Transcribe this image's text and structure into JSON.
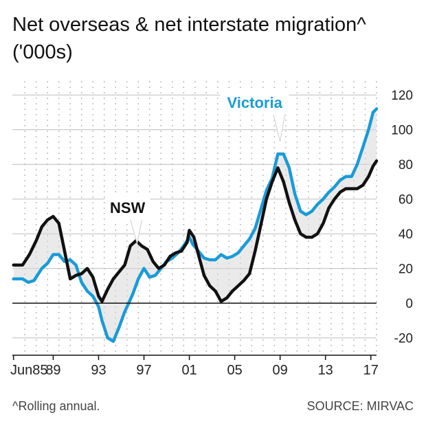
{
  "title_line1": "Net overseas & net interstate migration^",
  "title_line2": "('000s)",
  "footnote": "^Rolling annual.",
  "source": "SOURCE: MIRVAC",
  "colors": {
    "victoria": "#1a9bd7",
    "nsw": "#111111",
    "grid": "#bbbbbb",
    "axis": "#111111"
  },
  "chart_data": {
    "type": "line",
    "x_tick_labels": [
      "Jun85",
      "89",
      "93",
      "97",
      "01",
      "05",
      "09",
      "13",
      "17"
    ],
    "x_tick_values": [
      1985.5,
      1989,
      1993,
      1997,
      2001,
      2005,
      2009,
      2013,
      2017
    ],
    "xlim": [
      1985.4,
      2017.5
    ],
    "y_tick_labels": [
      "120",
      "100",
      "80",
      "60",
      "40",
      "20",
      "0",
      "-20"
    ],
    "y_tick_values": [
      120,
      100,
      80,
      60,
      40,
      20,
      0,
      -20
    ],
    "ylim": [
      -30,
      128
    ],
    "annotations": [
      {
        "label": "NSW",
        "series": "NSW",
        "x": 1996.4,
        "y": 33
      },
      {
        "label": "Victoria",
        "series": "Victoria",
        "x": 2009.0,
        "y": 92
      }
    ],
    "series": [
      {
        "name": "Victoria",
        "color": "#1a9bd7",
        "points": [
          [
            1985.5,
            14
          ],
          [
            1986.3,
            14
          ],
          [
            1986.8,
            12
          ],
          [
            1987.3,
            13
          ],
          [
            1988.0,
            20
          ],
          [
            1988.5,
            23
          ],
          [
            1989.0,
            28
          ],
          [
            1989.5,
            28
          ],
          [
            1990.0,
            24
          ],
          [
            1990.5,
            25
          ],
          [
            1991.0,
            22
          ],
          [
            1991.5,
            12
          ],
          [
            1992.0,
            7
          ],
          [
            1992.5,
            4
          ],
          [
            1993.0,
            -2
          ],
          [
            1993.3,
            -10
          ],
          [
            1993.8,
            -20
          ],
          [
            1994.3,
            -22
          ],
          [
            1994.8,
            -14
          ],
          [
            1995.3,
            -5
          ],
          [
            1996.0,
            5
          ],
          [
            1996.5,
            14
          ],
          [
            1997.0,
            20
          ],
          [
            1997.5,
            15
          ],
          [
            1998.0,
            16
          ],
          [
            1998.5,
            20
          ],
          [
            1999.0,
            24
          ],
          [
            1999.5,
            26
          ],
          [
            2000.0,
            29
          ],
          [
            2000.5,
            33
          ],
          [
            2001.0,
            38
          ],
          [
            2001.3,
            34
          ],
          [
            2001.8,
            30
          ],
          [
            2002.3,
            26
          ],
          [
            2002.8,
            25
          ],
          [
            2003.3,
            25
          ],
          [
            2003.8,
            28
          ],
          [
            2004.3,
            26
          ],
          [
            2004.8,
            27
          ],
          [
            2005.3,
            29
          ],
          [
            2005.8,
            33
          ],
          [
            2006.3,
            37
          ],
          [
            2006.8,
            43
          ],
          [
            2007.3,
            54
          ],
          [
            2007.8,
            65
          ],
          [
            2008.3,
            72
          ],
          [
            2008.8,
            86
          ],
          [
            2009.3,
            86
          ],
          [
            2009.8,
            78
          ],
          [
            2010.3,
            63
          ],
          [
            2010.8,
            53
          ],
          [
            2011.3,
            51
          ],
          [
            2011.8,
            53
          ],
          [
            2012.3,
            57
          ],
          [
            2012.8,
            60
          ],
          [
            2013.3,
            64
          ],
          [
            2013.8,
            67
          ],
          [
            2014.3,
            71
          ],
          [
            2014.8,
            73
          ],
          [
            2015.3,
            73
          ],
          [
            2015.8,
            80
          ],
          [
            2016.3,
            90
          ],
          [
            2016.8,
            100
          ],
          [
            2017.2,
            110
          ],
          [
            2017.5,
            112
          ]
        ]
      },
      {
        "name": "NSW",
        "color": "#111111",
        "points": [
          [
            1985.5,
            22
          ],
          [
            1986.3,
            22
          ],
          [
            1986.9,
            28
          ],
          [
            1987.5,
            36
          ],
          [
            1988.0,
            44
          ],
          [
            1988.5,
            48
          ],
          [
            1989.0,
            50
          ],
          [
            1989.5,
            46
          ],
          [
            1990.0,
            30
          ],
          [
            1990.5,
            14
          ],
          [
            1991.0,
            16
          ],
          [
            1991.5,
            17
          ],
          [
            1992.0,
            20
          ],
          [
            1992.5,
            15
          ],
          [
            1993.0,
            4
          ],
          [
            1993.3,
            1
          ],
          [
            1993.8,
            8
          ],
          [
            1994.3,
            14
          ],
          [
            1994.8,
            18
          ],
          [
            1995.3,
            22
          ],
          [
            1995.8,
            33
          ],
          [
            1996.3,
            36
          ],
          [
            1996.8,
            33
          ],
          [
            1997.3,
            31
          ],
          [
            1997.8,
            24
          ],
          [
            1998.3,
            20
          ],
          [
            1998.8,
            22
          ],
          [
            1999.3,
            27
          ],
          [
            1999.8,
            29
          ],
          [
            2000.3,
            30
          ],
          [
            2000.8,
            35
          ],
          [
            2001.0,
            42
          ],
          [
            2001.4,
            38
          ],
          [
            2001.8,
            28
          ],
          [
            2002.3,
            16
          ],
          [
            2002.8,
            10
          ],
          [
            2003.3,
            7
          ],
          [
            2003.8,
            1
          ],
          [
            2004.3,
            3
          ],
          [
            2004.8,
            7
          ],
          [
            2005.3,
            10
          ],
          [
            2005.8,
            13
          ],
          [
            2006.3,
            17
          ],
          [
            2006.8,
            30
          ],
          [
            2007.3,
            45
          ],
          [
            2007.8,
            60
          ],
          [
            2008.3,
            70
          ],
          [
            2008.8,
            78
          ],
          [
            2009.3,
            70
          ],
          [
            2009.8,
            58
          ],
          [
            2010.3,
            48
          ],
          [
            2010.8,
            40
          ],
          [
            2011.3,
            38
          ],
          [
            2011.8,
            38
          ],
          [
            2012.3,
            40
          ],
          [
            2012.8,
            46
          ],
          [
            2013.3,
            55
          ],
          [
            2013.8,
            60
          ],
          [
            2014.3,
            64
          ],
          [
            2014.8,
            66
          ],
          [
            2015.3,
            66
          ],
          [
            2015.8,
            66
          ],
          [
            2016.3,
            68
          ],
          [
            2016.8,
            73
          ],
          [
            2017.2,
            79
          ],
          [
            2017.5,
            82
          ]
        ]
      }
    ]
  }
}
